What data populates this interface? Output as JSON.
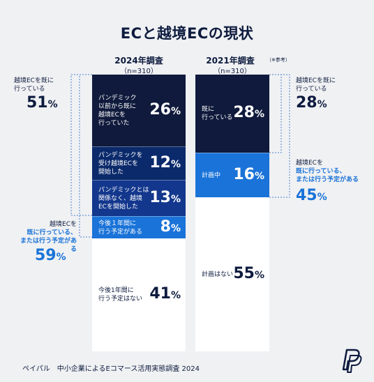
{
  "title": "ECと越境ECの現状",
  "colors": {
    "dark_navy": "#0f1a3c",
    "navy": "#0b2a6b",
    "mid_blue": "#13378d",
    "bright_blue": "#1a73d8",
    "white": "#ffffff"
  },
  "chart_data": [
    {
      "type": "stacked-bar",
      "title": "2024年調査",
      "subtitle": "（n=310）",
      "unit": "%",
      "segments": [
        {
          "label_lines": [
            "パンデミック",
            "以前から既に",
            "越境ECを",
            "行っていた"
          ],
          "value": 26
        },
        {
          "label_lines": [
            "パンデミックを",
            "受け越境ECを",
            "開始した"
          ],
          "value": 12
        },
        {
          "label_lines": [
            "パンデミックとは",
            "関係なく、越境",
            "ECを開始した"
          ],
          "value": 13
        },
        {
          "label_lines": [
            "今後１年間に",
            "行う予定がある"
          ],
          "value": 8
        },
        {
          "label_lines": [
            "今後1年間に",
            "行う予定はない"
          ],
          "value": 41
        }
      ],
      "brackets": [
        {
          "label_lines": [
            "越境ECを既に",
            "行っている"
          ],
          "value": 51
        },
        {
          "label_lines": [
            "越境ECを",
            "既に行っている、",
            "または行う予定がある"
          ],
          "value": 59
        }
      ]
    },
    {
      "type": "stacked-bar",
      "title": "2021年調査",
      "note": "（※参考）",
      "subtitle": "（n=310）",
      "unit": "%",
      "segments": [
        {
          "label_lines": [
            "既に",
            "行っている"
          ],
          "value": 28
        },
        {
          "label_lines": [
            "計画中"
          ],
          "value": 16
        },
        {
          "label_lines": [
            "計画はない"
          ],
          "value": 55
        }
      ],
      "brackets": [
        {
          "label_lines": [
            "越境ECを既に",
            "行っている"
          ],
          "value": 28
        },
        {
          "label_lines": [
            "越境ECを",
            "既に行っている、",
            "または行う予定がある"
          ],
          "value": 45
        }
      ]
    }
  ],
  "footer": "ペイパル　中小企業によるEコマース活用実態調査 2024",
  "logo": "paypal-logo"
}
